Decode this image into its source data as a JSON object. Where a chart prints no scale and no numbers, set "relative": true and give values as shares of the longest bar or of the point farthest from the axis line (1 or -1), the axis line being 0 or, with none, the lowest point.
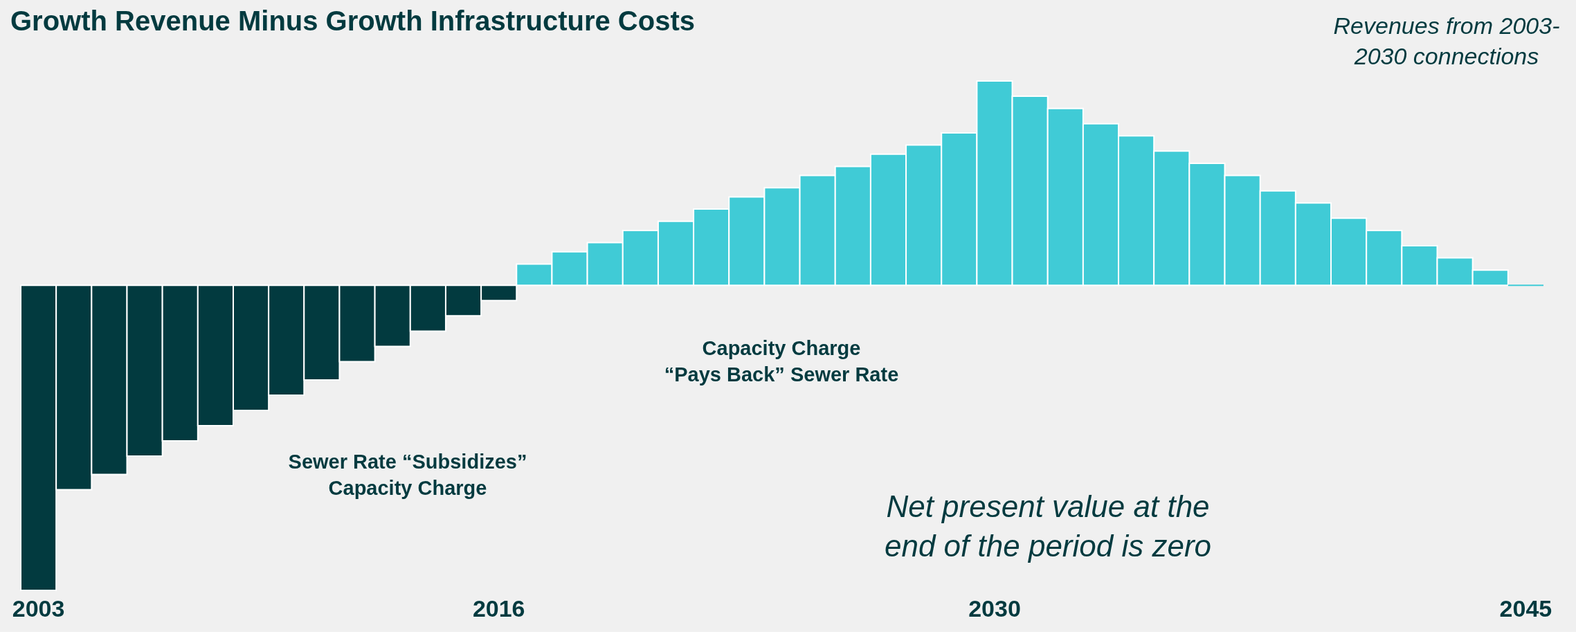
{
  "chart_data": {
    "type": "bar",
    "title": "Growth Revenue Minus Growth Infrastructure Costs",
    "relative": true,
    "categories": [
      "2003",
      null,
      null,
      null,
      null,
      null,
      null,
      null,
      null,
      null,
      null,
      null,
      null,
      "2016",
      null,
      null,
      null,
      null,
      null,
      null,
      null,
      null,
      null,
      null,
      null,
      null,
      null,
      "2030",
      null,
      null,
      null,
      null,
      null,
      null,
      null,
      null,
      null,
      null,
      null,
      null,
      null,
      null,
      "2045"
    ],
    "values": [
      -1,
      -0.67,
      -0.62,
      -0.56,
      -0.51,
      -0.46,
      -0.41,
      -0.36,
      -0.31,
      -0.25,
      -0.2,
      -0.15,
      -0.1,
      -0.05,
      0.07,
      0.11,
      0.14,
      0.18,
      0.21,
      0.25,
      0.29,
      0.32,
      0.36,
      0.39,
      0.43,
      0.46,
      0.5,
      0.67,
      0.62,
      0.58,
      0.53,
      0.49,
      0.44,
      0.4,
      0.36,
      0.31,
      0.27,
      0.22,
      0.18,
      0.13,
      0.09,
      0.05,
      0
    ],
    "colors": [
      "#023a3f",
      "#023a3f",
      "#023a3f",
      "#023a3f",
      "#023a3f",
      "#023a3f",
      "#023a3f",
      "#023a3f",
      "#023a3f",
      "#023a3f",
      "#023a3f",
      "#023a3f",
      "#023a3f",
      "#023a3f",
      "#40cbd6",
      "#40cbd6",
      "#40cbd6",
      "#40cbd6",
      "#40cbd6",
      "#40cbd6",
      "#40cbd6",
      "#40cbd6",
      "#40cbd6",
      "#40cbd6",
      "#40cbd6",
      "#40cbd6",
      "#40cbd6",
      "#40cbd6",
      "#40cbd6",
      "#40cbd6",
      "#40cbd6",
      "#40cbd6",
      "#40cbd6",
      "#40cbd6",
      "#40cbd6",
      "#40cbd6",
      "#40cbd6",
      "#40cbd6",
      "#40cbd6",
      "#40cbd6",
      "#40cbd6",
      "#40cbd6",
      "#40cbd6"
    ],
    "annotations": [
      "Revenues from 2003-\n2030 connections",
      "Capacity Charge\n“Pays Back” Sewer Rate",
      "Sewer Rate “Subsidizes”\nCapacity Charge",
      "Net present value at the\nend of the period is zero"
    ]
  }
}
